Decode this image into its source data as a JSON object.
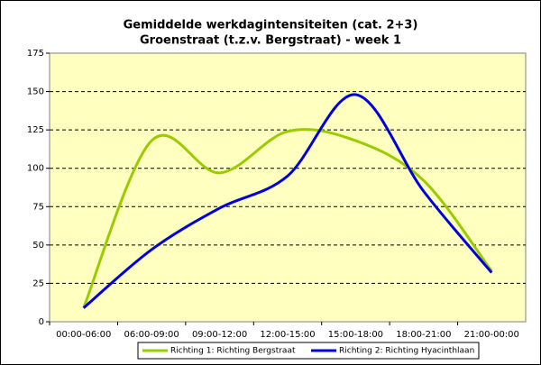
{
  "chart_data": {
    "type": "line",
    "title": "Gemiddelde werkdagintensiteiten (cat. 2+3)",
    "subtitle": "Groenstraat (t.z.v. Bergstraat) - week 1",
    "categories": [
      "00:00-06:00",
      "06:00-09:00",
      "09:00-12:00",
      "12:00-15:00",
      "15:00-18:00",
      "18:00-21:00",
      "21:00-00:00"
    ],
    "series": [
      {
        "name": "Richting 1: Richting Bergstraat",
        "color": "#99cc00",
        "values": [
          9,
          118,
          97,
          124,
          118,
          92,
          33
        ]
      },
      {
        "name": "Richting 2: Richting Hyacinthlaan",
        "color": "#0000dd",
        "values": [
          9,
          47,
          74,
          95,
          148,
          85,
          32
        ]
      }
    ],
    "ylim": [
      0,
      175
    ],
    "yticks": [
      0,
      25,
      50,
      75,
      100,
      125,
      150,
      175
    ],
    "grid": true,
    "legend": "bottom"
  }
}
